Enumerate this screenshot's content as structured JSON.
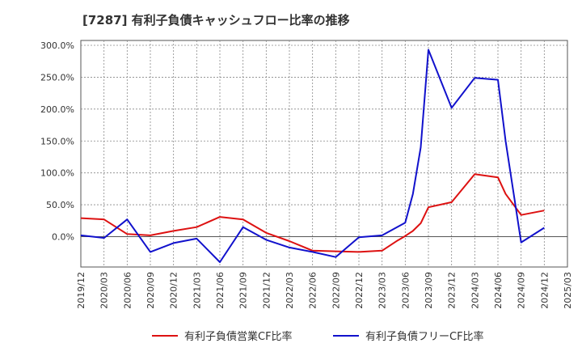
{
  "chart_data": {
    "type": "line",
    "title": "[7287]  有利子負債キャッシュフロー比率の推移",
    "xlabel": "",
    "ylabel": "",
    "ylim": [
      -47,
      300
    ],
    "yticks": [
      0,
      50,
      100,
      150,
      200,
      250,
      300
    ],
    "ytick_labels": [
      "0.0%",
      "50.0%",
      "100.0%",
      "150.0%",
      "200.0%",
      "250.0%",
      "300.0%"
    ],
    "categories": [
      "2019/12",
      "2020/03",
      "2020/06",
      "2020/09",
      "2020/12",
      "2021/03",
      "2021/06",
      "2021/09",
      "2021/12",
      "2022/03",
      "2022/06",
      "2022/09",
      "2022/12",
      "2023/03",
      "2023/06",
      "2023/09",
      "2023/12",
      "2024/03",
      "2024/06",
      "2024/09",
      "2024/12",
      "2025/03"
    ],
    "grid": true,
    "legend_position": "bottom",
    "series": [
      {
        "name": "有利子負債営業CF比率",
        "color": "#dd1111",
        "points": [
          [
            0,
            29
          ],
          [
            1,
            27
          ],
          [
            2,
            4
          ],
          [
            3,
            2
          ],
          [
            4,
            9
          ],
          [
            5,
            15
          ],
          [
            6,
            31
          ],
          [
            7,
            27
          ],
          [
            8,
            6
          ],
          [
            9,
            -7
          ],
          [
            10,
            -22
          ],
          [
            11,
            -23
          ],
          [
            12,
            -24
          ],
          [
            13,
            -22
          ],
          [
            13.67,
            -6
          ],
          [
            14,
            1
          ],
          [
            14.33,
            9
          ],
          [
            14.67,
            21
          ],
          [
            15,
            46
          ],
          [
            16,
            54
          ],
          [
            17,
            98
          ],
          [
            18,
            93
          ],
          [
            18.33,
            67
          ],
          [
            19,
            34
          ],
          [
            20,
            41
          ]
        ]
      },
      {
        "name": "有利子負債フリーCF比率",
        "color": "#1111cc",
        "points": [
          [
            0,
            2
          ],
          [
            1,
            -2
          ],
          [
            2,
            27
          ],
          [
            3,
            -24
          ],
          [
            4,
            -10
          ],
          [
            5,
            -3
          ],
          [
            6,
            -40
          ],
          [
            7,
            15
          ],
          [
            8,
            -5
          ],
          [
            9,
            -17
          ],
          [
            10,
            -24
          ],
          [
            11,
            -32
          ],
          [
            12,
            -1
          ],
          [
            13,
            2
          ],
          [
            14,
            22
          ],
          [
            14.33,
            67
          ],
          [
            14.67,
            140
          ],
          [
            15,
            293
          ],
          [
            16,
            202
          ],
          [
            17,
            249
          ],
          [
            18,
            246
          ],
          [
            18.33,
            150
          ],
          [
            19,
            -9
          ],
          [
            20,
            14
          ]
        ]
      }
    ]
  }
}
